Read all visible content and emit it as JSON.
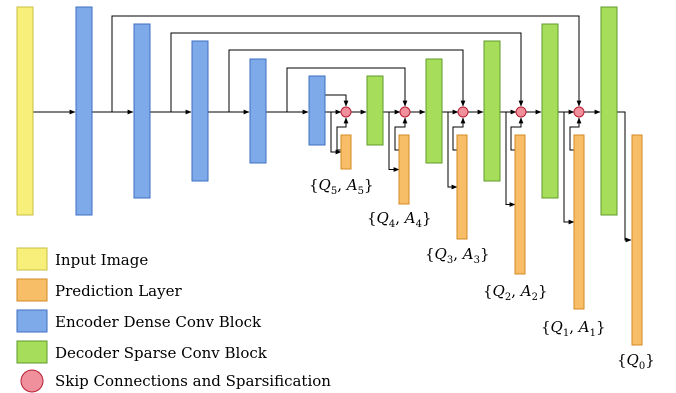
{
  "colors": {
    "input": "#f7ef7a",
    "input_stroke": "#c8bf40",
    "encoder": "#7eaaea",
    "encoder_stroke": "#3d6fc0",
    "decoder": "#a6de5c",
    "decoder_stroke": "#5f9a28",
    "prediction": "#f7be67",
    "prediction_stroke": "#d38a23",
    "skip": "#f0909c",
    "skip_stroke": "#b81f33"
  },
  "outputs": [
    {
      "letter_q": "Q",
      "sub_q": "5",
      "letter_a": "A",
      "sub_a": "5"
    },
    {
      "letter_q": "Q",
      "sub_q": "4",
      "letter_a": "A",
      "sub_a": "4"
    },
    {
      "letter_q": "Q",
      "sub_q": "3",
      "letter_a": "A",
      "sub_a": "3"
    },
    {
      "letter_q": "Q",
      "sub_q": "2",
      "letter_a": "A",
      "sub_a": "2"
    },
    {
      "letter_q": "Q",
      "sub_q": "1",
      "letter_a": "A",
      "sub_a": "1"
    },
    {
      "letter_q": "Q",
      "sub_q": "0"
    }
  ],
  "legend": [
    {
      "label": "Input Image",
      "kind": "input"
    },
    {
      "label": "Prediction Layer",
      "kind": "prediction"
    },
    {
      "label": "Encoder Dense Conv Block",
      "kind": "encoder"
    },
    {
      "label": "Decoder Sparse Conv Block",
      "kind": "decoder"
    },
    {
      "label": "Skip Connections and Sparsification",
      "kind": "skip"
    }
  ]
}
